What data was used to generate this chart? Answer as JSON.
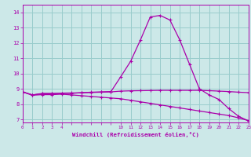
{
  "xlabel": "Windchill (Refroidissement éolien,°C)",
  "xlim": [
    0,
    23
  ],
  "ylim": [
    6.8,
    14.5
  ],
  "yticks": [
    7,
    8,
    9,
    10,
    11,
    12,
    13,
    14
  ],
  "bg_color": "#cce8e8",
  "grid_color": "#99cccc",
  "line_color": "#aa00aa",
  "line1_x": [
    0,
    1,
    2,
    3,
    4,
    5,
    6,
    7,
    8,
    9,
    10,
    11,
    12,
    13,
    14,
    15,
    16,
    17,
    18,
    19,
    20,
    21,
    22,
    23
  ],
  "line1_y": [
    8.8,
    8.6,
    8.7,
    8.7,
    8.7,
    8.7,
    8.75,
    8.78,
    8.8,
    8.82,
    9.8,
    10.8,
    12.2,
    13.7,
    13.8,
    13.5,
    12.2,
    10.6,
    9.0,
    8.6,
    8.3,
    7.7,
    7.2,
    6.9
  ],
  "line2_x": [
    0,
    1,
    2,
    3,
    4,
    5,
    6,
    7,
    8,
    9,
    10,
    11,
    12,
    13,
    14,
    15,
    16,
    17,
    18,
    19,
    20,
    21,
    22,
    23
  ],
  "line2_y": [
    8.8,
    8.6,
    8.68,
    8.68,
    8.72,
    8.73,
    8.74,
    8.76,
    8.78,
    8.8,
    8.85,
    8.87,
    8.88,
    8.89,
    8.9,
    8.9,
    8.9,
    8.9,
    8.9,
    8.88,
    8.85,
    8.82,
    8.78,
    8.75
  ],
  "line3_x": [
    0,
    1,
    2,
    3,
    4,
    5,
    6,
    7,
    8,
    9,
    10,
    11,
    12,
    13,
    14,
    15,
    16,
    17,
    18,
    19,
    20,
    21,
    22,
    23
  ],
  "line3_y": [
    8.8,
    8.58,
    8.62,
    8.62,
    8.65,
    8.6,
    8.55,
    8.5,
    8.45,
    8.4,
    8.35,
    8.25,
    8.15,
    8.05,
    7.95,
    7.85,
    7.75,
    7.65,
    7.55,
    7.45,
    7.35,
    7.25,
    7.1,
    6.92
  ]
}
